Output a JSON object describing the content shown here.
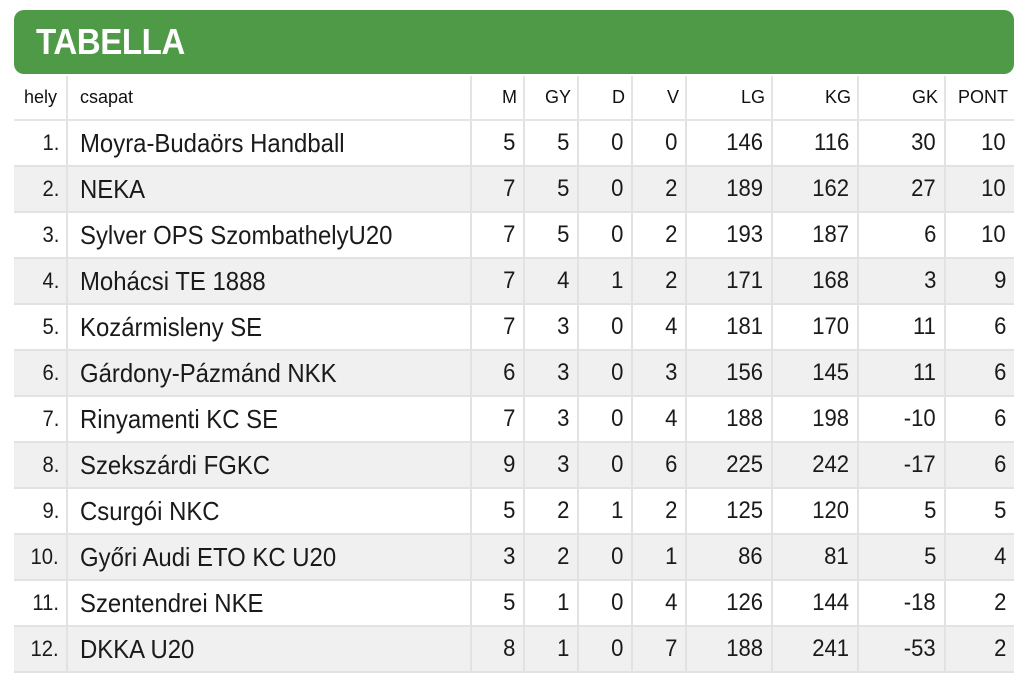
{
  "header": {
    "title": "TABELLA"
  },
  "columns": [
    "hely",
    "csapat",
    "M",
    "GY",
    "D",
    "V",
    "LG",
    "KG",
    "GK",
    "PONT"
  ],
  "rows": [
    {
      "hely": "1.",
      "csapat": "Moyra-Budaörs Handball",
      "M": "5",
      "GY": "5",
      "D": "0",
      "V": "0",
      "LG": "146",
      "KG": "116",
      "GK": "30",
      "PONT": "10"
    },
    {
      "hely": "2.",
      "csapat": "NEKA",
      "M": "7",
      "GY": "5",
      "D": "0",
      "V": "2",
      "LG": "189",
      "KG": "162",
      "GK": "27",
      "PONT": "10"
    },
    {
      "hely": "3.",
      "csapat": "Sylver OPS SzombathelyU20",
      "M": "7",
      "GY": "5",
      "D": "0",
      "V": "2",
      "LG": "193",
      "KG": "187",
      "GK": "6",
      "PONT": "10"
    },
    {
      "hely": "4.",
      "csapat": "Mohácsi TE 1888",
      "M": "7",
      "GY": "4",
      "D": "1",
      "V": "2",
      "LG": "171",
      "KG": "168",
      "GK": "3",
      "PONT": "9"
    },
    {
      "hely": "5.",
      "csapat": "Kozármisleny SE",
      "M": "7",
      "GY": "3",
      "D": "0",
      "V": "4",
      "LG": "181",
      "KG": "170",
      "GK": "11",
      "PONT": "6"
    },
    {
      "hely": "6.",
      "csapat": "Gárdony-Pázmánd NKK",
      "M": "6",
      "GY": "3",
      "D": "0",
      "V": "3",
      "LG": "156",
      "KG": "145",
      "GK": "11",
      "PONT": "6"
    },
    {
      "hely": "7.",
      "csapat": "Rinyamenti KC SE",
      "M": "7",
      "GY": "3",
      "D": "0",
      "V": "4",
      "LG": "188",
      "KG": "198",
      "GK": "-10",
      "PONT": "6"
    },
    {
      "hely": "8.",
      "csapat": "Szekszárdi FGKC",
      "M": "9",
      "GY": "3",
      "D": "0",
      "V": "6",
      "LG": "225",
      "KG": "242",
      "GK": "-17",
      "PONT": "6"
    },
    {
      "hely": "9.",
      "csapat": "Csurgói NKC",
      "M": "5",
      "GY": "2",
      "D": "1",
      "V": "2",
      "LG": "125",
      "KG": "120",
      "GK": "5",
      "PONT": "5"
    },
    {
      "hely": "10.",
      "csapat": "Győri Audi ETO KC U20",
      "M": "3",
      "GY": "2",
      "D": "0",
      "V": "1",
      "LG": "86",
      "KG": "81",
      "GK": "5",
      "PONT": "4"
    },
    {
      "hely": "11.",
      "csapat": "Szentendrei NKE",
      "M": "5",
      "GY": "1",
      "D": "0",
      "V": "4",
      "LG": "126",
      "KG": "144",
      "GK": "-18",
      "PONT": "2"
    },
    {
      "hely": "12.",
      "csapat": "DKKA U20",
      "M": "8",
      "GY": "1",
      "D": "0",
      "V": "7",
      "LG": "188",
      "KG": "241",
      "GK": "-53",
      "PONT": "2"
    }
  ],
  "colors": {
    "header_bg": "#4e9a47",
    "header_text": "#ffffff",
    "row_alt_bg": "#f0f0f0",
    "grid_line": "#e2e2e2"
  }
}
